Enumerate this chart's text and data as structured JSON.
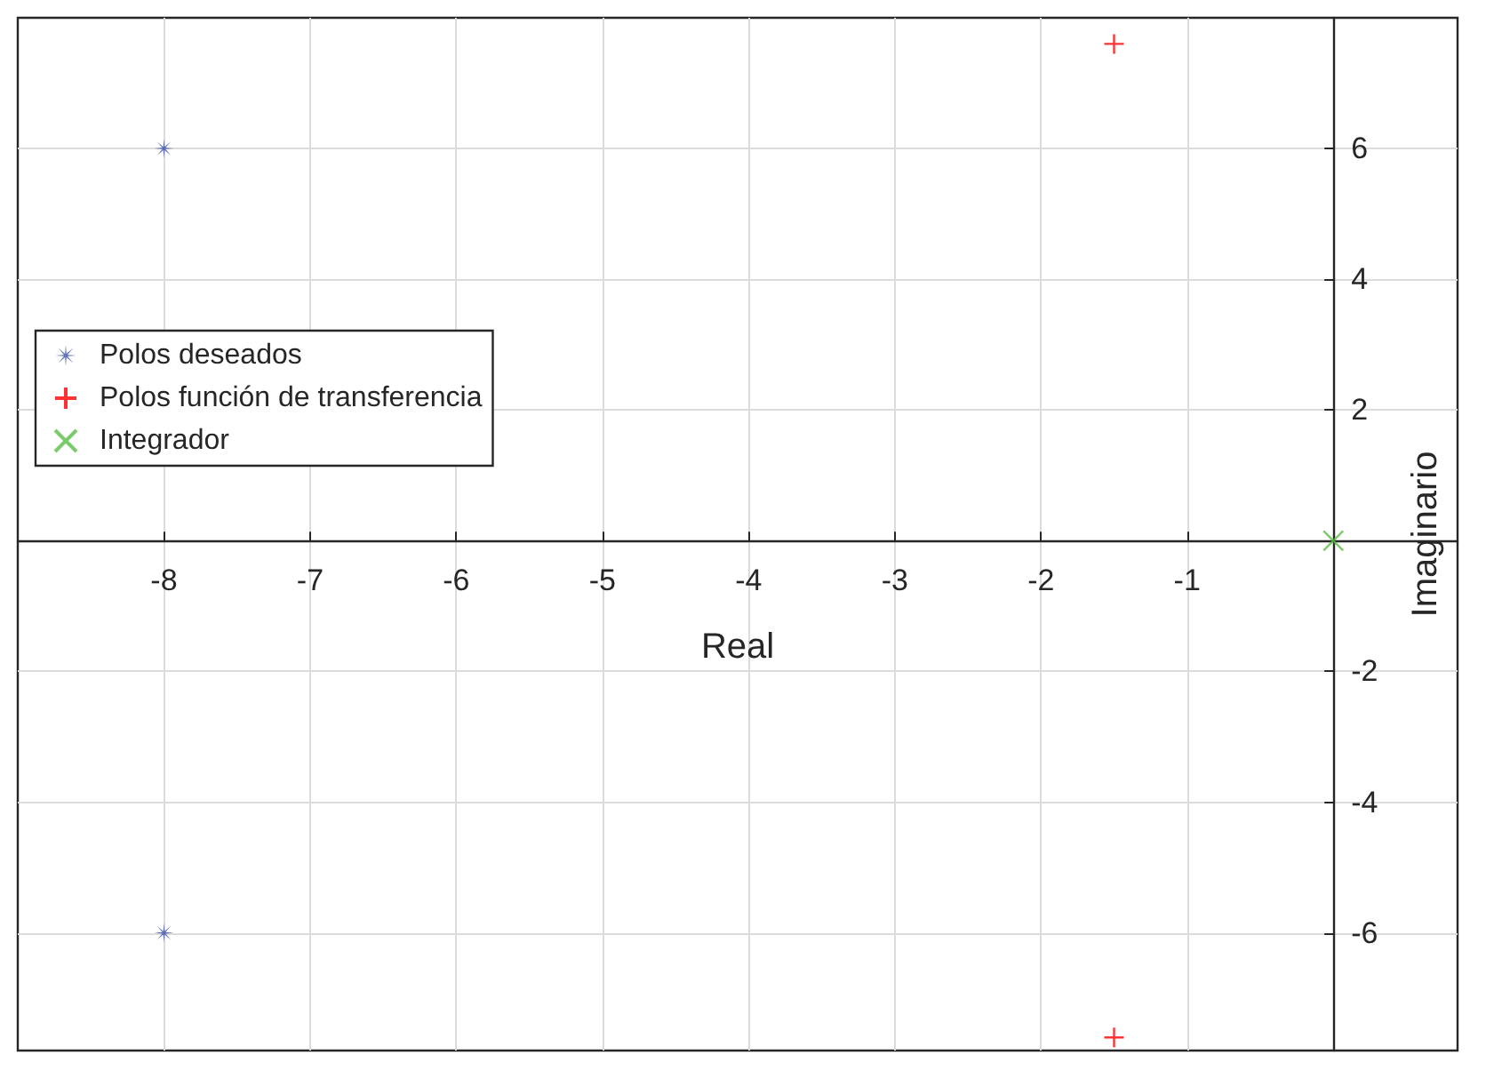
{
  "chart_data": {
    "type": "scatter",
    "xlabel": "Real",
    "ylabel": "Imaginario",
    "xlim": [
      -9,
      0.85
    ],
    "ylim": [
      -7.8,
      8
    ],
    "xticks": [
      -8,
      -7,
      -6,
      -5,
      -4,
      -3,
      -2,
      -1
    ],
    "yticks": [
      -6,
      -4,
      -2,
      2,
      4,
      6
    ],
    "grid": true,
    "legend": "left",
    "series": [
      {
        "name": "Polos deseados",
        "color": "#3d4fa8",
        "marker": "star",
        "x": [
          -8,
          -8
        ],
        "values": [
          6,
          -6
        ]
      },
      {
        "name": "Polos función de transferencia",
        "color": "#ff0000",
        "marker": "plus",
        "x": [
          -1.5,
          -1.5
        ],
        "values": [
          7.6,
          -7.6
        ]
      },
      {
        "name": "Integrador",
        "color": "#5bbd45",
        "marker": "cross",
        "x": [
          0
        ],
        "values": [
          0
        ]
      }
    ]
  }
}
